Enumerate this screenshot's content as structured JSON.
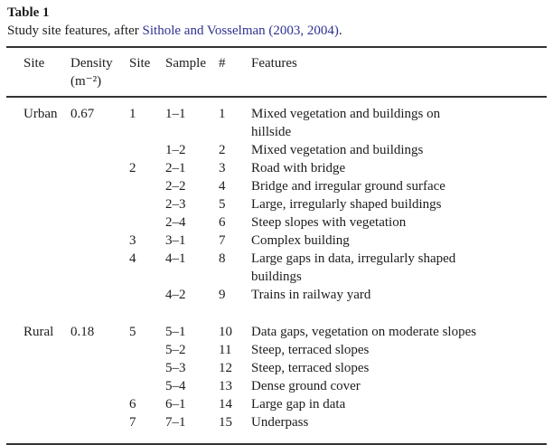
{
  "page": {
    "background": "#ffffff",
    "text_color": "#1c1c1c",
    "link_color": "#2e3192",
    "rule_color": "#333333"
  },
  "table": {
    "title": "Table 1",
    "caption": {
      "prefix": "Study site features, after ",
      "link": "Sithole and Vosselman (2003, 2004)",
      "suffix": "."
    },
    "headers": [
      {
        "line1": "Site",
        "line2": ""
      },
      {
        "line1": "Density",
        "line2": "(m⁻²)"
      },
      {
        "line1": "Site",
        "line2": ""
      },
      {
        "line1": "Sample",
        "line2": ""
      },
      {
        "line1": "#",
        "line2": ""
      },
      {
        "line1": "Features",
        "line2": ""
      }
    ],
    "rows": [
      {
        "site": "Urban",
        "density": "0.67",
        "site_no": "1",
        "sample": "1–1",
        "num": "1",
        "features": "Mixed vegetation and buildings on hillside",
        "group_start": false
      },
      {
        "site": "",
        "density": "",
        "site_no": "",
        "sample": "1–2",
        "num": "2",
        "features": "Mixed vegetation and buildings",
        "group_start": false
      },
      {
        "site": "",
        "density": "",
        "site_no": "2",
        "sample": "2–1",
        "num": "3",
        "features": "Road with bridge",
        "group_start": false
      },
      {
        "site": "",
        "density": "",
        "site_no": "",
        "sample": "2–2",
        "num": "4",
        "features": "Bridge and irregular ground surface",
        "group_start": false
      },
      {
        "site": "",
        "density": "",
        "site_no": "",
        "sample": "2–3",
        "num": "5",
        "features": "Large, irregularly shaped buildings",
        "group_start": false
      },
      {
        "site": "",
        "density": "",
        "site_no": "",
        "sample": "2–4",
        "num": "6",
        "features": "Steep slopes with vegetation",
        "group_start": false
      },
      {
        "site": "",
        "density": "",
        "site_no": "3",
        "sample": "3–1",
        "num": "7",
        "features": "Complex building",
        "group_start": false
      },
      {
        "site": "",
        "density": "",
        "site_no": "4",
        "sample": "4–1",
        "num": "8",
        "features": "Large gaps in data, irregularly shaped buildings",
        "group_start": false
      },
      {
        "site": "",
        "density": "",
        "site_no": "",
        "sample": "4–2",
        "num": "9",
        "features": "Trains in railway yard",
        "group_start": false
      },
      {
        "site": "Rural",
        "density": "0.18",
        "site_no": "5",
        "sample": "5–1",
        "num": "10",
        "features": "Data gaps, vegetation on moderate slopes",
        "group_start": true
      },
      {
        "site": "",
        "density": "",
        "site_no": "",
        "sample": "5–2",
        "num": "11",
        "features": "Steep, terraced slopes",
        "group_start": false
      },
      {
        "site": "",
        "density": "",
        "site_no": "",
        "sample": "5–3",
        "num": "12",
        "features": "Steep, terraced slopes",
        "group_start": false
      },
      {
        "site": "",
        "density": "",
        "site_no": "",
        "sample": "5–4",
        "num": "13",
        "features": "Dense ground cover",
        "group_start": false
      },
      {
        "site": "",
        "density": "",
        "site_no": "6",
        "sample": "6–1",
        "num": "14",
        "features": "Large gap in data",
        "group_start": false
      },
      {
        "site": "",
        "density": "",
        "site_no": "7",
        "sample": "7–1",
        "num": "15",
        "features": "Underpass",
        "group_start": false
      }
    ]
  }
}
